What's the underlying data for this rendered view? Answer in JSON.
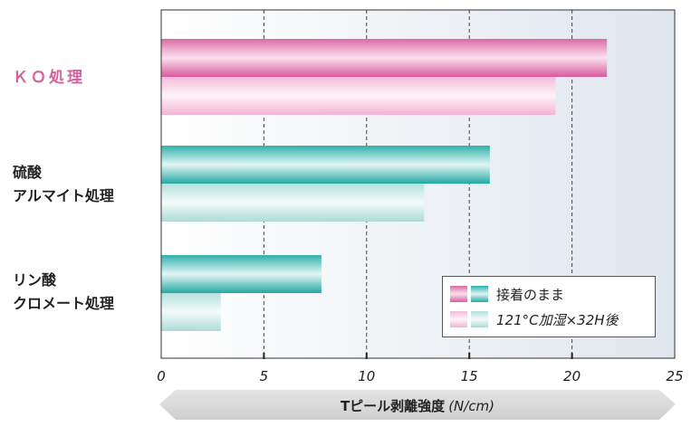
{
  "chart_data": {
    "type": "bar",
    "orientation": "horizontal",
    "categories": [
      {
        "label": "ＫＯ処理",
        "accent": true
      },
      {
        "label": "硫酸\nアルマイト処理",
        "accent": false
      },
      {
        "label": "リン酸\nクロメート処理",
        "accent": false
      }
    ],
    "series": [
      {
        "name": "接着のまま",
        "values": [
          21.7,
          16.0,
          7.8
        ]
      },
      {
        "name": "121°C加湿×32H後",
        "values": [
          19.2,
          12.8,
          2.9
        ]
      }
    ],
    "xlim": [
      0,
      25
    ],
    "xticks": [
      "0",
      "5",
      "10",
      "15",
      "20",
      "25"
    ],
    "xlabel": "Tピール剥離強度 (N/cm)",
    "xlabel_main": "Tピール剥離強度",
    "xlabel_unit": "(N/cm)",
    "grid": "vertical-dashed",
    "legend_position": "bottom-right",
    "colors": {
      "pink_dark": "#e38fc0",
      "pink_light": "#f7c9df",
      "teal_dark": "#4fbdb8",
      "teal_light": "#c4e6e3",
      "accent_text": "#d85f9e"
    }
  }
}
